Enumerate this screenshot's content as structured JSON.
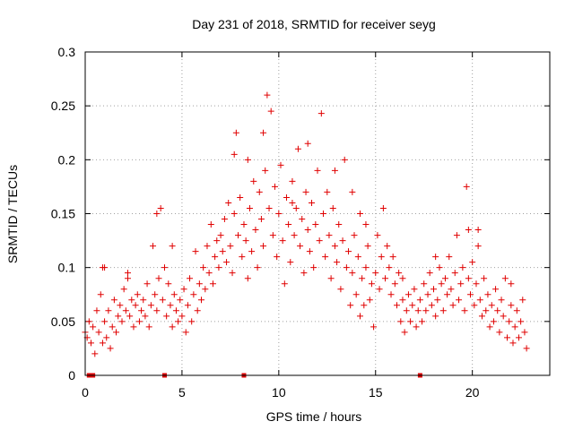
{
  "chart_data": {
    "type": "scatter",
    "title": "Day 231 of 2018, SRMTID for receiver seyg",
    "xlabel": "GPS time / hours",
    "ylabel": "SRMTID / TECUs",
    "xlim": [
      0,
      24
    ],
    "ylim": [
      0,
      0.3
    ],
    "xticks": [
      0,
      5,
      10,
      15,
      20
    ],
    "xtick_labels": [
      "0",
      "5",
      "10",
      "15",
      "20"
    ],
    "yticks": [
      0,
      0.05,
      0.1,
      0.15,
      0.2,
      0.25,
      0.3
    ],
    "ytick_labels": [
      "0",
      "0.05",
      "0.1",
      "0.15",
      "0.2",
      "0.25",
      "0.3"
    ],
    "grid": true,
    "marker": "+",
    "color": "#e00000",
    "series": [
      {
        "name": "SRMTID",
        "points": [
          [
            0.0,
            0.04
          ],
          [
            0.1,
            0.035
          ],
          [
            0.2,
            0.05
          ],
          [
            0.3,
            0.03
          ],
          [
            0.4,
            0.045
          ],
          [
            0.5,
            0.02
          ],
          [
            0.6,
            0.06
          ],
          [
            0.7,
            0.04
          ],
          [
            0.8,
            0.075
          ],
          [
            0.9,
            0.03
          ],
          [
            1.0,
            0.05
          ],
          [
            1.0,
            0.1
          ],
          [
            1.1,
            0.035
          ],
          [
            1.2,
            0.06
          ],
          [
            1.3,
            0.025
          ],
          [
            1.4,
            0.045
          ],
          [
            1.5,
            0.07
          ],
          [
            1.6,
            0.04
          ],
          [
            1.7,
            0.055
          ],
          [
            1.8,
            0.065
          ],
          [
            1.9,
            0.05
          ],
          [
            2.0,
            0.08
          ],
          [
            2.1,
            0.06
          ],
          [
            2.2,
            0.09
          ],
          [
            2.3,
            0.055
          ],
          [
            2.4,
            0.07
          ],
          [
            2.5,
            0.045
          ],
          [
            2.6,
            0.065
          ],
          [
            2.7,
            0.075
          ],
          [
            2.8,
            0.05
          ],
          [
            2.9,
            0.06
          ],
          [
            3.0,
            0.07
          ],
          [
            3.1,
            0.055
          ],
          [
            3.2,
            0.085
          ],
          [
            3.3,
            0.045
          ],
          [
            3.4,
            0.065
          ],
          [
            3.5,
            0.12
          ],
          [
            3.6,
            0.075
          ],
          [
            3.7,
            0.06
          ],
          [
            3.8,
            0.09
          ],
          [
            3.9,
            0.155
          ],
          [
            4.0,
            0.07
          ],
          [
            4.1,
            0.1
          ],
          [
            4.2,
            0.055
          ],
          [
            4.3,
            0.085
          ],
          [
            4.4,
            0.065
          ],
          [
            4.5,
            0.045
          ],
          [
            4.6,
            0.075
          ],
          [
            4.7,
            0.06
          ],
          [
            4.8,
            0.05
          ],
          [
            4.9,
            0.07
          ],
          [
            5.0,
            0.055
          ],
          [
            5.1,
            0.08
          ],
          [
            5.2,
            0.04
          ],
          [
            5.3,
            0.065
          ],
          [
            5.4,
            0.09
          ],
          [
            5.5,
            0.05
          ],
          [
            5.6,
            0.075
          ],
          [
            5.7,
            0.115
          ],
          [
            5.8,
            0.06
          ],
          [
            5.9,
            0.085
          ],
          [
            6.0,
            0.07
          ],
          [
            6.1,
            0.1
          ],
          [
            6.2,
            0.08
          ],
          [
            6.3,
            0.12
          ],
          [
            6.4,
            0.095
          ],
          [
            6.5,
            0.14
          ],
          [
            6.6,
            0.085
          ],
          [
            6.7,
            0.11
          ],
          [
            6.8,
            0.125
          ],
          [
            6.9,
            0.1
          ],
          [
            7.0,
            0.13
          ],
          [
            7.1,
            0.115
          ],
          [
            7.2,
            0.145
          ],
          [
            7.3,
            0.105
          ],
          [
            7.4,
            0.16
          ],
          [
            7.5,
            0.12
          ],
          [
            7.6,
            0.095
          ],
          [
            7.7,
            0.15
          ],
          [
            7.8,
            0.225
          ],
          [
            7.9,
            0.13
          ],
          [
            8.0,
            0.165
          ],
          [
            8.1,
            0.11
          ],
          [
            8.2,
            0.14
          ],
          [
            8.3,
            0.125
          ],
          [
            8.4,
            0.09
          ],
          [
            8.5,
            0.155
          ],
          [
            8.6,
            0.115
          ],
          [
            8.7,
            0.18
          ],
          [
            8.8,
            0.135
          ],
          [
            8.9,
            0.1
          ],
          [
            9.0,
            0.17
          ],
          [
            9.1,
            0.145
          ],
          [
            9.2,
            0.12
          ],
          [
            9.3,
            0.19
          ],
          [
            9.4,
            0.26
          ],
          [
            9.5,
            0.155
          ],
          [
            9.6,
            0.245
          ],
          [
            9.7,
            0.13
          ],
          [
            9.8,
            0.175
          ],
          [
            9.9,
            0.11
          ],
          [
            10.0,
            0.15
          ],
          [
            10.1,
            0.195
          ],
          [
            10.2,
            0.125
          ],
          [
            10.3,
            0.085
          ],
          [
            10.4,
            0.165
          ],
          [
            10.5,
            0.14
          ],
          [
            10.6,
            0.105
          ],
          [
            10.7,
            0.18
          ],
          [
            10.8,
            0.13
          ],
          [
            10.9,
            0.155
          ],
          [
            11.0,
            0.21
          ],
          [
            11.1,
            0.12
          ],
          [
            11.2,
            0.145
          ],
          [
            11.3,
            0.095
          ],
          [
            11.4,
            0.17
          ],
          [
            11.5,
            0.135
          ],
          [
            11.6,
            0.115
          ],
          [
            11.7,
            0.16
          ],
          [
            11.8,
            0.1
          ],
          [
            11.9,
            0.14
          ],
          [
            12.0,
            0.19
          ],
          [
            12.1,
            0.125
          ],
          [
            12.2,
            0.243
          ],
          [
            12.3,
            0.15
          ],
          [
            12.4,
            0.11
          ],
          [
            12.5,
            0.17
          ],
          [
            12.6,
            0.13
          ],
          [
            12.7,
            0.09
          ],
          [
            12.8,
            0.155
          ],
          [
            12.9,
            0.12
          ],
          [
            13.0,
            0.105
          ],
          [
            13.1,
            0.14
          ],
          [
            13.2,
            0.08
          ],
          [
            13.3,
            0.125
          ],
          [
            13.4,
            0.2
          ],
          [
            13.5,
            0.1
          ],
          [
            13.6,
            0.115
          ],
          [
            13.7,
            0.065
          ],
          [
            13.8,
            0.095
          ],
          [
            13.9,
            0.13
          ],
          [
            14.0,
            0.075
          ],
          [
            14.1,
            0.11
          ],
          [
            14.2,
            0.055
          ],
          [
            14.3,
            0.09
          ],
          [
            14.4,
            0.065
          ],
          [
            14.5,
            0.1
          ],
          [
            14.6,
            0.12
          ],
          [
            14.7,
            0.07
          ],
          [
            14.8,
            0.085
          ],
          [
            14.9,
            0.045
          ],
          [
            15.0,
            0.095
          ],
          [
            15.1,
            0.13
          ],
          [
            15.2,
            0.08
          ],
          [
            15.3,
            0.11
          ],
          [
            15.4,
            0.155
          ],
          [
            15.5,
            0.09
          ],
          [
            15.6,
            0.12
          ],
          [
            15.7,
            0.1
          ],
          [
            15.8,
            0.075
          ],
          [
            15.9,
            0.11
          ],
          [
            16.0,
            0.085
          ],
          [
            16.1,
            0.065
          ],
          [
            16.2,
            0.095
          ],
          [
            16.3,
            0.05
          ],
          [
            16.4,
            0.07
          ],
          [
            16.5,
            0.04
          ],
          [
            16.6,
            0.06
          ],
          [
            16.7,
            0.075
          ],
          [
            16.8,
            0.05
          ],
          [
            16.9,
            0.065
          ],
          [
            17.0,
            0.08
          ],
          [
            17.1,
            0.045
          ],
          [
            17.2,
            0.06
          ],
          [
            17.3,
            0.07
          ],
          [
            17.4,
            0.05
          ],
          [
            17.5,
            0.085
          ],
          [
            17.6,
            0.06
          ],
          [
            17.7,
            0.075
          ],
          [
            17.8,
            0.095
          ],
          [
            17.9,
            0.065
          ],
          [
            18.0,
            0.08
          ],
          [
            18.1,
            0.055
          ],
          [
            18.2,
            0.07
          ],
          [
            18.3,
            0.1
          ],
          [
            18.4,
            0.085
          ],
          [
            18.5,
            0.06
          ],
          [
            18.6,
            0.09
          ],
          [
            18.7,
            0.075
          ],
          [
            18.8,
            0.11
          ],
          [
            18.9,
            0.08
          ],
          [
            19.0,
            0.065
          ],
          [
            19.1,
            0.095
          ],
          [
            19.2,
            0.13
          ],
          [
            19.3,
            0.07
          ],
          [
            19.4,
            0.085
          ],
          [
            19.5,
            0.1
          ],
          [
            19.6,
            0.06
          ],
          [
            19.7,
            0.175
          ],
          [
            19.8,
            0.09
          ],
          [
            19.9,
            0.075
          ],
          [
            20.0,
            0.105
          ],
          [
            20.1,
            0.065
          ],
          [
            20.2,
            0.085
          ],
          [
            20.3,
            0.12
          ],
          [
            20.4,
            0.07
          ],
          [
            20.5,
            0.055
          ],
          [
            20.6,
            0.09
          ],
          [
            20.7,
            0.06
          ],
          [
            20.8,
            0.075
          ],
          [
            20.9,
            0.045
          ],
          [
            21.0,
            0.065
          ],
          [
            21.1,
            0.05
          ],
          [
            21.2,
            0.08
          ],
          [
            21.3,
            0.06
          ],
          [
            21.4,
            0.04
          ],
          [
            21.5,
            0.07
          ],
          [
            21.6,
            0.055
          ],
          [
            21.7,
            0.09
          ],
          [
            21.8,
            0.035
          ],
          [
            21.9,
            0.05
          ],
          [
            22.0,
            0.065
          ],
          [
            22.1,
            0.03
          ],
          [
            22.2,
            0.045
          ],
          [
            22.3,
            0.06
          ],
          [
            22.4,
            0.035
          ],
          [
            22.5,
            0.05
          ],
          [
            22.6,
            0.07
          ],
          [
            22.7,
            0.04
          ],
          [
            22.8,
            0.025
          ],
          [
            3.7,
            0.15
          ],
          [
            4.5,
            0.12
          ],
          [
            9.2,
            0.225
          ],
          [
            10.7,
            0.16
          ],
          [
            11.5,
            0.215
          ],
          [
            12.9,
            0.19
          ],
          [
            14.5,
            0.14
          ],
          [
            14.2,
            0.15
          ],
          [
            18.1,
            0.11
          ],
          [
            19.8,
            0.135
          ],
          [
            20.3,
            0.135
          ],
          [
            22.0,
            0.085
          ],
          [
            7.7,
            0.205
          ],
          [
            8.4,
            0.2
          ],
          [
            2.2,
            0.095
          ],
          [
            0.9,
            0.1
          ],
          [
            13.8,
            0.17
          ],
          [
            16.4,
            0.09
          ]
        ]
      }
    ],
    "gap_markers_x": [
      0.2,
      0.3,
      0.4,
      4.1,
      8.2,
      17.3
    ]
  }
}
